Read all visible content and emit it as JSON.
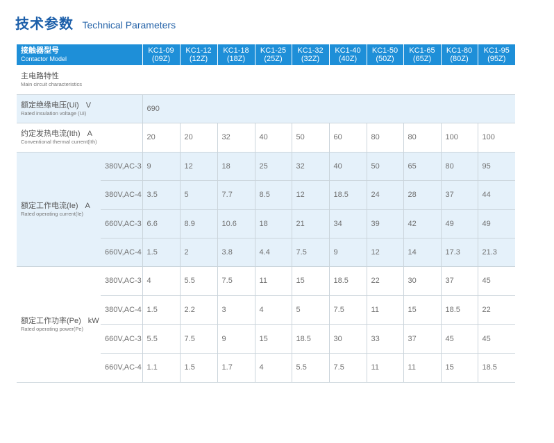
{
  "title": {
    "cn": "技术参数",
    "en": "Technical Parameters"
  },
  "colors": {
    "header_bg": "#1e8fd8",
    "light_row": "#e5f1fa",
    "title": "#1b5ea9",
    "text": "#707070",
    "border": "#cad4db"
  },
  "table": {
    "header": {
      "label_cn": "接触器型号",
      "label_en": "Contactor Model",
      "models": [
        {
          "name": "KC1-09",
          "code": "(09Z)"
        },
        {
          "name": "KC1-12",
          "code": "(12Z)"
        },
        {
          "name": "KC1-18",
          "code": "(18Z)"
        },
        {
          "name": "KC1-25",
          "code": "(25Z)"
        },
        {
          "name": "KC1-32",
          "code": "(32Z)"
        },
        {
          "name": "KC1-40",
          "code": "(40Z)"
        },
        {
          "name": "KC1-50",
          "code": "(50Z)"
        },
        {
          "name": "KC1-65",
          "code": "(65Z)"
        },
        {
          "name": "KC1-80",
          "code": "(80Z)"
        },
        {
          "name": "KC1-95",
          "code": "(95Z)"
        }
      ]
    },
    "section": {
      "cn": "主电路特性",
      "en": "Main circuit characteristics"
    },
    "insulation": {
      "cn": "额定绝缘电压(Ui)",
      "unit": "V",
      "en": "Rated insulation voltage (Ui)",
      "value": "690"
    },
    "thermal": {
      "cn": "约定发热电流(Ith)",
      "unit": "A",
      "en": "Conventional thermal current(Ith)",
      "values": [
        "20",
        "20",
        "32",
        "40",
        "50",
        "60",
        "80",
        "80",
        "100",
        "100"
      ]
    },
    "current": {
      "cn": "额定工作电流(Ie)",
      "unit": "A",
      "en": "Rated operating current(Ie)",
      "rows": [
        {
          "cond": "380V,AC-3",
          "values": [
            "9",
            "12",
            "18",
            "25",
            "32",
            "40",
            "50",
            "65",
            "80",
            "95"
          ]
        },
        {
          "cond": "380V,AC-4",
          "values": [
            "3.5",
            "5",
            "7.7",
            "8.5",
            "12",
            "18.5",
            "24",
            "28",
            "37",
            "44"
          ]
        },
        {
          "cond": "660V,AC-3",
          "values": [
            "6.6",
            "8.9",
            "10.6",
            "18",
            "21",
            "34",
            "39",
            "42",
            "49",
            "49"
          ]
        },
        {
          "cond": "660V,AC-4",
          "values": [
            "1.5",
            "2",
            "3.8",
            "4.4",
            "7.5",
            "9",
            "12",
            "14",
            "17.3",
            "21.3"
          ]
        }
      ]
    },
    "power": {
      "cn": "额定工作功率(Pe)",
      "unit": "kW",
      "en": "Rated operating power(Pe)",
      "rows": [
        {
          "cond": "380V,AC-3",
          "values": [
            "4",
            "5.5",
            "7.5",
            "11",
            "15",
            "18.5",
            "22",
            "30",
            "37",
            "45"
          ]
        },
        {
          "cond": "380V,AC-4",
          "values": [
            "1.5",
            "2.2",
            "3",
            "4",
            "5",
            "7.5",
            "11",
            "15",
            "18.5",
            "22"
          ]
        },
        {
          "cond": "660V,AC-3",
          "values": [
            "5.5",
            "7.5",
            "9",
            "15",
            "18.5",
            "30",
            "33",
            "37",
            "45",
            "45"
          ]
        },
        {
          "cond": "660V,AC-4",
          "values": [
            "1.1",
            "1.5",
            "1.7",
            "4",
            "5.5",
            "7.5",
            "11",
            "11",
            "15",
            "18.5"
          ]
        }
      ]
    }
  }
}
